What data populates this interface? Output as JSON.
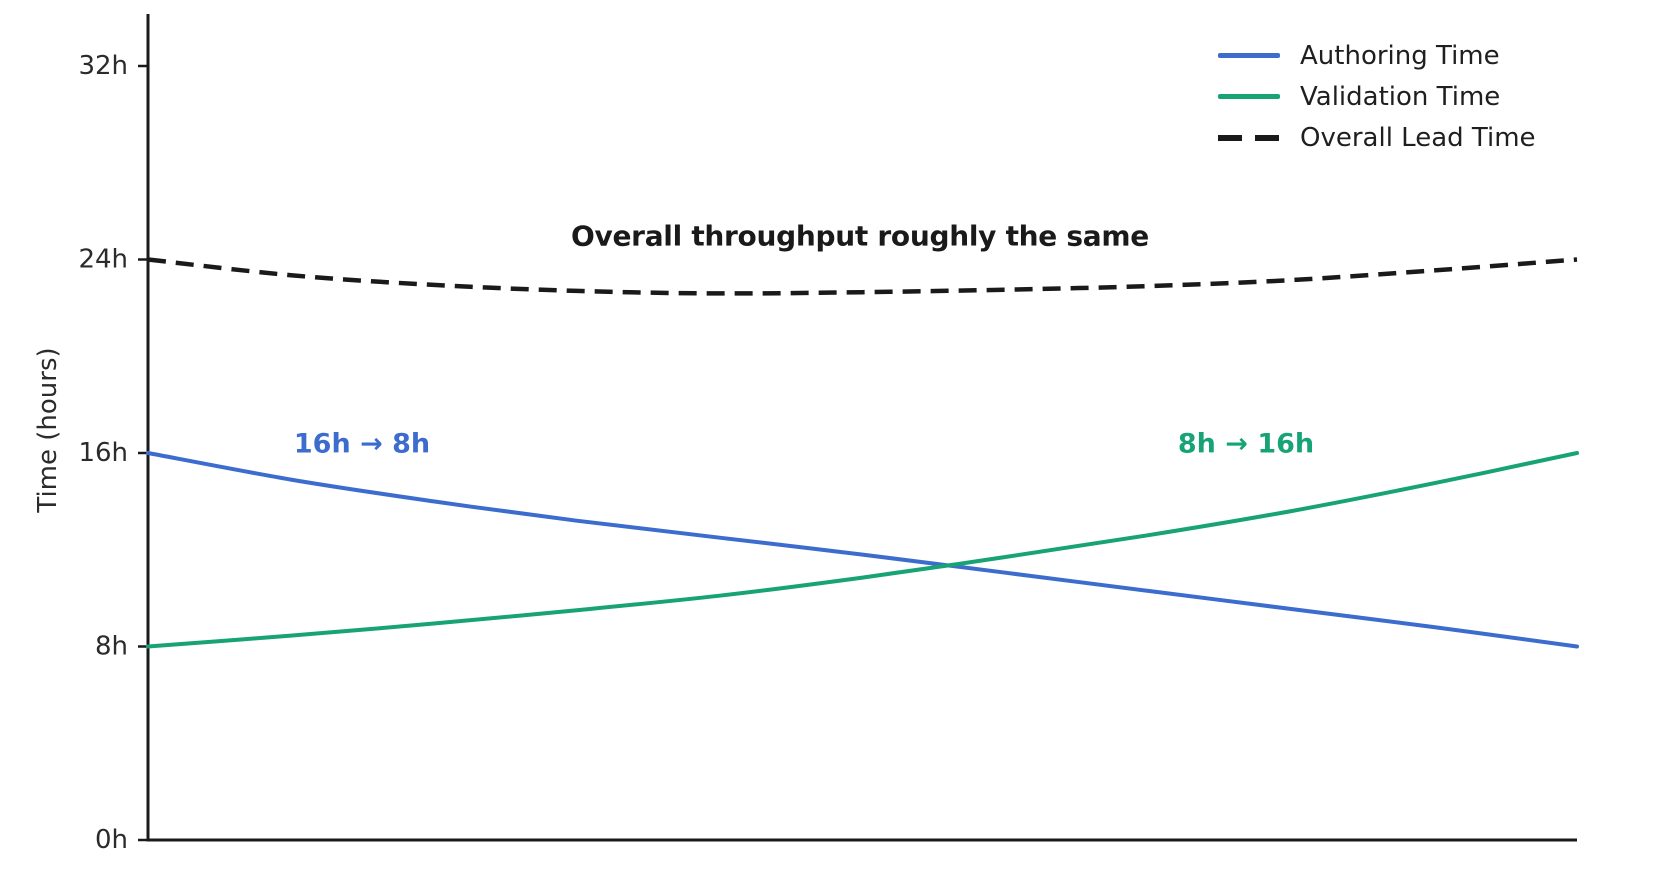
{
  "chart_data": {
    "type": "line",
    "title": "",
    "xlabel": "",
    "ylabel": "Time (hours)",
    "ylim": [
      0,
      34
    ],
    "x_axis_ticks": "none",
    "grid": false,
    "legend_position": "top-right",
    "yticks": [
      {
        "label": "0h",
        "value": 0
      },
      {
        "label": "8h",
        "value": 8
      },
      {
        "label": "16h",
        "value": 16
      },
      {
        "label": "24h",
        "value": 24
      },
      {
        "label": "32h",
        "value": 32
      }
    ],
    "x_normalized": [
      0,
      0.1,
      0.2,
      0.3,
      0.4,
      0.5,
      0.6,
      0.7,
      0.8,
      0.9,
      1.0
    ],
    "series": [
      {
        "name": "Authoring Time",
        "color": "#3b6cce",
        "style": "solid",
        "values": [
          16,
          14.9,
          14.0,
          13.2,
          12.5,
          11.8,
          11.05,
          10.3,
          9.55,
          8.8,
          8
        ]
      },
      {
        "name": "Validation Time",
        "color": "#18a376",
        "style": "solid",
        "values": [
          8,
          8.45,
          8.95,
          9.5,
          10.1,
          10.85,
          11.7,
          12.6,
          13.6,
          14.75,
          16
        ]
      },
      {
        "name": "Overall Lead Time",
        "color": "#1a1a1a",
        "style": "dashed",
        "values": [
          24,
          23.35,
          22.95,
          22.7,
          22.6,
          22.65,
          22.75,
          22.9,
          23.15,
          23.55,
          24
        ]
      }
    ],
    "annotations": [
      {
        "id": "overall",
        "text": "Overall throughput roughly the same",
        "color": "#1a1a1a"
      },
      {
        "id": "authoring-change",
        "text": "16h → 8h",
        "color": "#3b6cce"
      },
      {
        "id": "validation-change",
        "text": "8h → 16h",
        "color": "#18a376"
      }
    ],
    "axis_color": "#1a1a1a",
    "tick_label_color": "#2b2b2b"
  }
}
